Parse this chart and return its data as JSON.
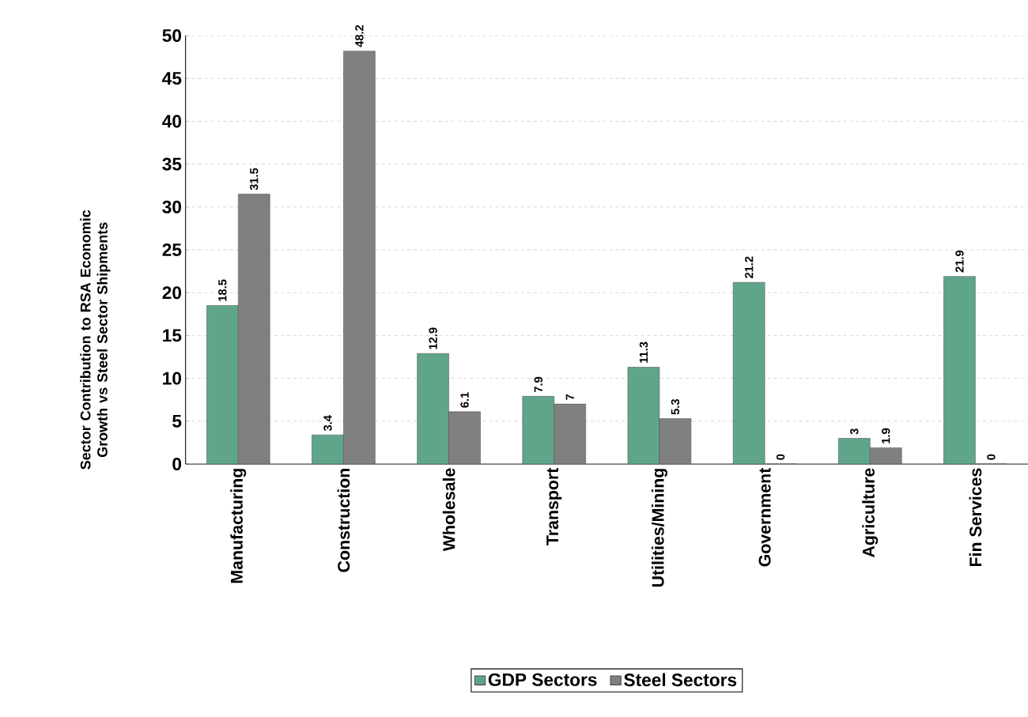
{
  "chart_data": {
    "type": "bar",
    "ylabel": "Sector Contribution to RSA Economic Growth vs Steel Sector Shipments",
    "categories": [
      "Manufacturing",
      "Construction",
      "Wholesale",
      "Transport",
      "Utilities/Mining",
      "Government",
      "Agriculture",
      "Fin Services"
    ],
    "series": [
      {
        "name": "GDP Sectors",
        "color": "#5fa58a",
        "values": [
          18.5,
          3.4,
          12.9,
          7.9,
          11.3,
          21.2,
          3,
          21.9
        ]
      },
      {
        "name": "Steel Sectors",
        "color": "#808080",
        "values": [
          31.5,
          48.2,
          6.1,
          7,
          5.3,
          0,
          1.9,
          0
        ]
      }
    ],
    "ylim": [
      0,
      50
    ],
    "yticks": [
      0,
      5,
      10,
      15,
      20,
      25,
      30,
      35,
      40,
      45,
      50
    ],
    "grid": "y",
    "legend": "bottom",
    "data_labels": true
  }
}
